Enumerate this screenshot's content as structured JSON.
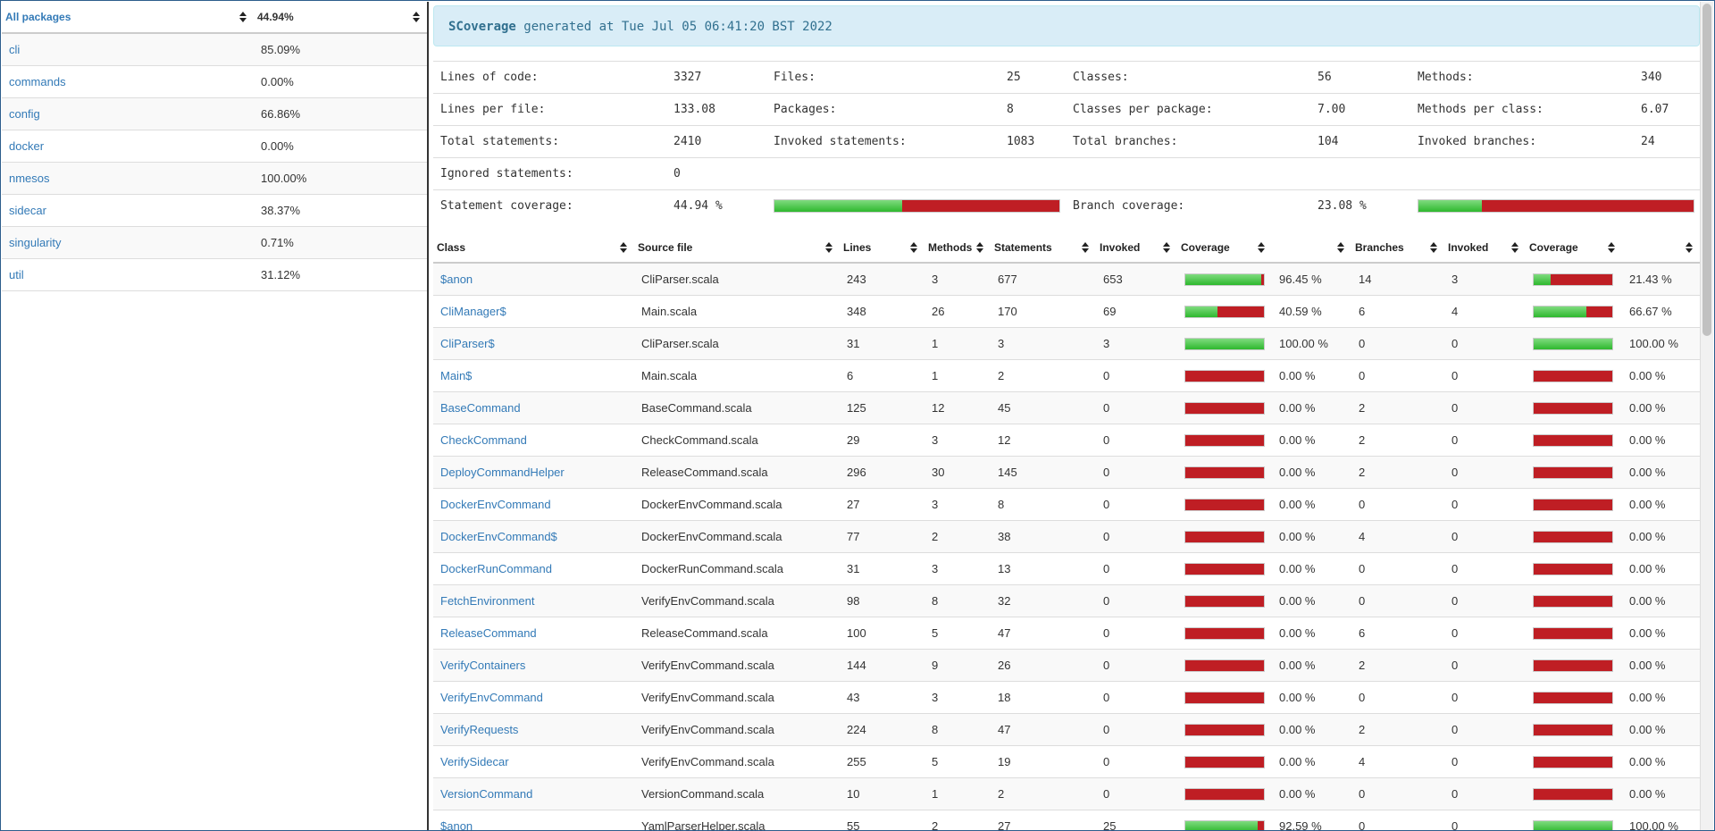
{
  "colors": {
    "link": "#337ab7",
    "covered": "#2eb82e",
    "uncovered": "#bf1e24",
    "banner_bg": "#d9edf7"
  },
  "packages": {
    "header_label": "All packages",
    "header_value": "44.94%",
    "items": [
      {
        "name": "cli",
        "coverage": "85.09%"
      },
      {
        "name": "commands",
        "coverage": "0.00%"
      },
      {
        "name": "config",
        "coverage": "66.86%"
      },
      {
        "name": "docker",
        "coverage": "0.00%"
      },
      {
        "name": "nmesos",
        "coverage": "100.00%"
      },
      {
        "name": "sidecar",
        "coverage": "38.37%"
      },
      {
        "name": "singularity",
        "coverage": "0.71%"
      },
      {
        "name": "util",
        "coverage": "31.12%"
      }
    ]
  },
  "banner": {
    "brand": "SCoverage",
    "text": " generated at Tue Jul 05 06:41:20 BST 2022"
  },
  "stats": {
    "lines_of_code_label": "Lines of code:",
    "lines_of_code": "3327",
    "files_label": "Files:",
    "files": "25",
    "classes_label": "Classes:",
    "classes": "56",
    "methods_label": "Methods:",
    "methods": "340",
    "lines_per_file_label": "Lines per file:",
    "lines_per_file": "133.08",
    "packages_label": "Packages:",
    "packages": "8",
    "classes_per_package_label": "Classes per package:",
    "classes_per_package": "7.00",
    "methods_per_class_label": "Methods per class:",
    "methods_per_class": "6.07",
    "total_statements_label": "Total statements:",
    "total_statements": "2410",
    "invoked_statements_label": "Invoked statements:",
    "invoked_statements": "1083",
    "total_branches_label": "Total branches:",
    "total_branches": "104",
    "invoked_branches_label": "Invoked branches:",
    "invoked_branches": "24",
    "ignored_statements_label": "Ignored statements:",
    "ignored_statements": "0",
    "statement_coverage_label": "Statement coverage:",
    "statement_coverage": "44.94 %",
    "statement_coverage_fraction": 0.4494,
    "branch_coverage_label": "Branch coverage:",
    "branch_coverage": "23.08 %",
    "branch_coverage_fraction": 0.2308
  },
  "class_table": {
    "headers": [
      "Class",
      "Source file",
      "Lines",
      "Methods",
      "Statements",
      "Invoked",
      "Coverage",
      "",
      "Branches",
      "Invoked",
      "Coverage",
      ""
    ],
    "rows": [
      {
        "class": "$anon",
        "source": "CliParser.scala",
        "lines": "243",
        "methods": "3",
        "statements": "677",
        "invoked": "653",
        "stmt_cov": "96.45 %",
        "stmt_frac": 0.9645,
        "branches": "14",
        "b_invoked": "3",
        "branch_cov": "21.43 %",
        "branch_frac": 0.2143
      },
      {
        "class": "CliManager$",
        "source": "Main.scala",
        "lines": "348",
        "methods": "26",
        "statements": "170",
        "invoked": "69",
        "stmt_cov": "40.59 %",
        "stmt_frac": 0.4059,
        "branches": "6",
        "b_invoked": "4",
        "branch_cov": "66.67 %",
        "branch_frac": 0.6667
      },
      {
        "class": "CliParser$",
        "source": "CliParser.scala",
        "lines": "31",
        "methods": "1",
        "statements": "3",
        "invoked": "3",
        "stmt_cov": "100.00 %",
        "stmt_frac": 1.0,
        "branches": "0",
        "b_invoked": "0",
        "branch_cov": "100.00 %",
        "branch_frac": 1.0
      },
      {
        "class": "Main$",
        "source": "Main.scala",
        "lines": "6",
        "methods": "1",
        "statements": "2",
        "invoked": "0",
        "stmt_cov": "0.00 %",
        "stmt_frac": 0,
        "branches": "0",
        "b_invoked": "0",
        "branch_cov": "0.00 %",
        "branch_frac": 0
      },
      {
        "class": "BaseCommand",
        "source": "BaseCommand.scala",
        "lines": "125",
        "methods": "12",
        "statements": "45",
        "invoked": "0",
        "stmt_cov": "0.00 %",
        "stmt_frac": 0,
        "branches": "2",
        "b_invoked": "0",
        "branch_cov": "0.00 %",
        "branch_frac": 0
      },
      {
        "class": "CheckCommand",
        "source": "CheckCommand.scala",
        "lines": "29",
        "methods": "3",
        "statements": "12",
        "invoked": "0",
        "stmt_cov": "0.00 %",
        "stmt_frac": 0,
        "branches": "2",
        "b_invoked": "0",
        "branch_cov": "0.00 %",
        "branch_frac": 0
      },
      {
        "class": "DeployCommandHelper",
        "source": "ReleaseCommand.scala",
        "lines": "296",
        "methods": "30",
        "statements": "145",
        "invoked": "0",
        "stmt_cov": "0.00 %",
        "stmt_frac": 0,
        "branches": "2",
        "b_invoked": "0",
        "branch_cov": "0.00 %",
        "branch_frac": 0
      },
      {
        "class": "DockerEnvCommand",
        "source": "DockerEnvCommand.scala",
        "lines": "27",
        "methods": "3",
        "statements": "8",
        "invoked": "0",
        "stmt_cov": "0.00 %",
        "stmt_frac": 0,
        "branches": "0",
        "b_invoked": "0",
        "branch_cov": "0.00 %",
        "branch_frac": 0
      },
      {
        "class": "DockerEnvCommand$",
        "source": "DockerEnvCommand.scala",
        "lines": "77",
        "methods": "2",
        "statements": "38",
        "invoked": "0",
        "stmt_cov": "0.00 %",
        "stmt_frac": 0,
        "branches": "4",
        "b_invoked": "0",
        "branch_cov": "0.00 %",
        "branch_frac": 0
      },
      {
        "class": "DockerRunCommand",
        "source": "DockerRunCommand.scala",
        "lines": "31",
        "methods": "3",
        "statements": "13",
        "invoked": "0",
        "stmt_cov": "0.00 %",
        "stmt_frac": 0,
        "branches": "0",
        "b_invoked": "0",
        "branch_cov": "0.00 %",
        "branch_frac": 0
      },
      {
        "class": "FetchEnvironment",
        "source": "VerifyEnvCommand.scala",
        "lines": "98",
        "methods": "8",
        "statements": "32",
        "invoked": "0",
        "stmt_cov": "0.00 %",
        "stmt_frac": 0,
        "branches": "0",
        "b_invoked": "0",
        "branch_cov": "0.00 %",
        "branch_frac": 0
      },
      {
        "class": "ReleaseCommand",
        "source": "ReleaseCommand.scala",
        "lines": "100",
        "methods": "5",
        "statements": "47",
        "invoked": "0",
        "stmt_cov": "0.00 %",
        "stmt_frac": 0,
        "branches": "6",
        "b_invoked": "0",
        "branch_cov": "0.00 %",
        "branch_frac": 0
      },
      {
        "class": "VerifyContainers",
        "source": "VerifyEnvCommand.scala",
        "lines": "144",
        "methods": "9",
        "statements": "26",
        "invoked": "0",
        "stmt_cov": "0.00 %",
        "stmt_frac": 0,
        "branches": "2",
        "b_invoked": "0",
        "branch_cov": "0.00 %",
        "branch_frac": 0
      },
      {
        "class": "VerifyEnvCommand",
        "source": "VerifyEnvCommand.scala",
        "lines": "43",
        "methods": "3",
        "statements": "18",
        "invoked": "0",
        "stmt_cov": "0.00 %",
        "stmt_frac": 0,
        "branches": "0",
        "b_invoked": "0",
        "branch_cov": "0.00 %",
        "branch_frac": 0
      },
      {
        "class": "VerifyRequests",
        "source": "VerifyEnvCommand.scala",
        "lines": "224",
        "methods": "8",
        "statements": "47",
        "invoked": "0",
        "stmt_cov": "0.00 %",
        "stmt_frac": 0,
        "branches": "2",
        "b_invoked": "0",
        "branch_cov": "0.00 %",
        "branch_frac": 0
      },
      {
        "class": "VerifySidecar",
        "source": "VerifyEnvCommand.scala",
        "lines": "255",
        "methods": "5",
        "statements": "19",
        "invoked": "0",
        "stmt_cov": "0.00 %",
        "stmt_frac": 0,
        "branches": "4",
        "b_invoked": "0",
        "branch_cov": "0.00 %",
        "branch_frac": 0
      },
      {
        "class": "VersionCommand",
        "source": "VersionCommand.scala",
        "lines": "10",
        "methods": "1",
        "statements": "2",
        "invoked": "0",
        "stmt_cov": "0.00 %",
        "stmt_frac": 0,
        "branches": "0",
        "b_invoked": "0",
        "branch_cov": "0.00 %",
        "branch_frac": 0
      },
      {
        "class": "$anon",
        "source": "YamlParserHelper.scala",
        "lines": "55",
        "methods": "2",
        "statements": "27",
        "invoked": "25",
        "stmt_cov": "92.59 %",
        "stmt_frac": 0.9259,
        "branches": "0",
        "b_invoked": "0",
        "branch_cov": "100.00 %",
        "branch_frac": 1.0
      }
    ]
  }
}
